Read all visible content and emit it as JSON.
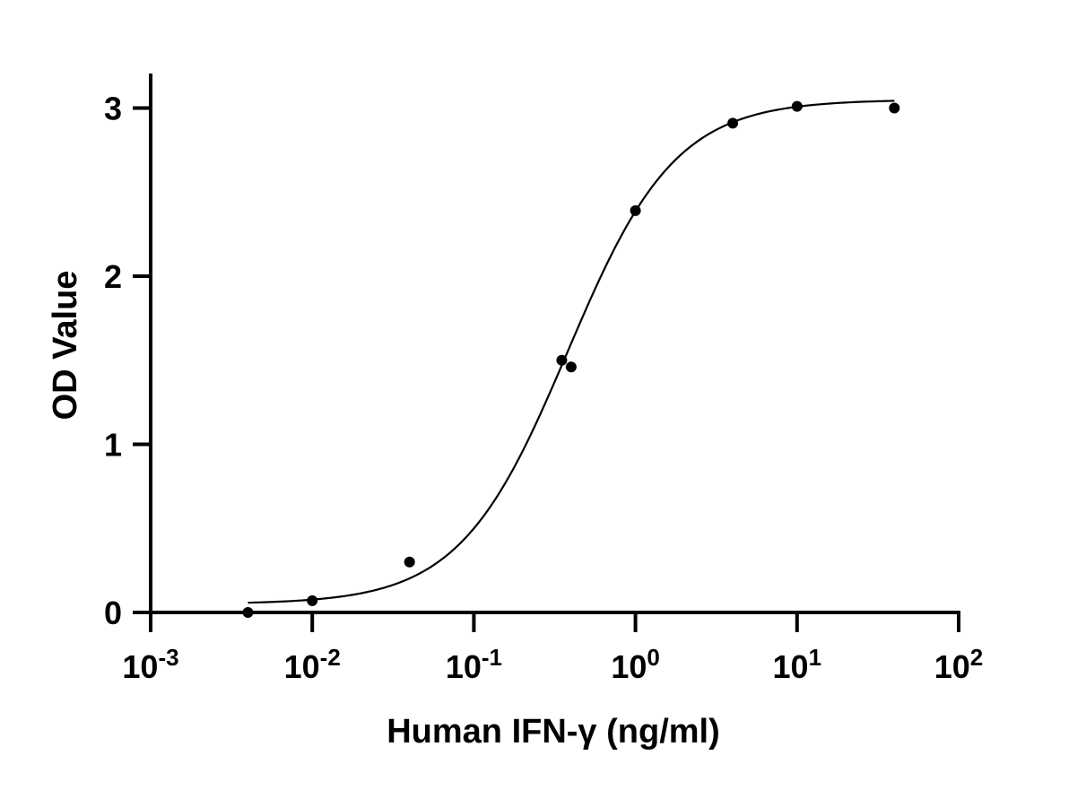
{
  "chart_data": {
    "type": "scatter",
    "title": "",
    "xlabel": "Human IFN-γ (ng/ml)",
    "ylabel": "OD Value",
    "xscale": "log",
    "xlim": [
      0.001,
      100
    ],
    "ylim": [
      0,
      3.2
    ],
    "grid": false,
    "legend": "none",
    "x_tick_labels": [
      {
        "base": "10",
        "exp": "-3"
      },
      {
        "base": "10",
        "exp": "-2"
      },
      {
        "base": "10",
        "exp": "-1"
      },
      {
        "base": "10",
        "exp": "0"
      },
      {
        "base": "10",
        "exp": "1"
      },
      {
        "base": "10",
        "exp": "2"
      }
    ],
    "x_tick_values": [
      0.001,
      0.01,
      0.1,
      1,
      10,
      100
    ],
    "y_tick_labels": [
      "0",
      "1",
      "2",
      "3"
    ],
    "y_tick_values": [
      0,
      1,
      2,
      3
    ],
    "series": [
      {
        "points": [
          {
            "x": 0.004,
            "y": 0.0
          },
          {
            "x": 0.01,
            "y": 0.07
          },
          {
            "x": 0.04,
            "y": 0.3
          },
          {
            "x": 0.35,
            "y": 1.5
          },
          {
            "x": 0.4,
            "y": 1.46
          },
          {
            "x": 1.0,
            "y": 2.39
          },
          {
            "x": 4.0,
            "y": 2.91
          },
          {
            "x": 10.0,
            "y": 3.01
          },
          {
            "x": 40.0,
            "y": 3.0
          }
        ],
        "fit": {
          "model": "4PL",
          "bottom": 0.05,
          "top": 3.05,
          "ec50": 0.38,
          "hill": 1.3,
          "x_range": [
            0.004,
            40
          ]
        }
      }
    ],
    "colors": {
      "points": "#000000",
      "line": "#000000",
      "axes": "#000000"
    }
  }
}
